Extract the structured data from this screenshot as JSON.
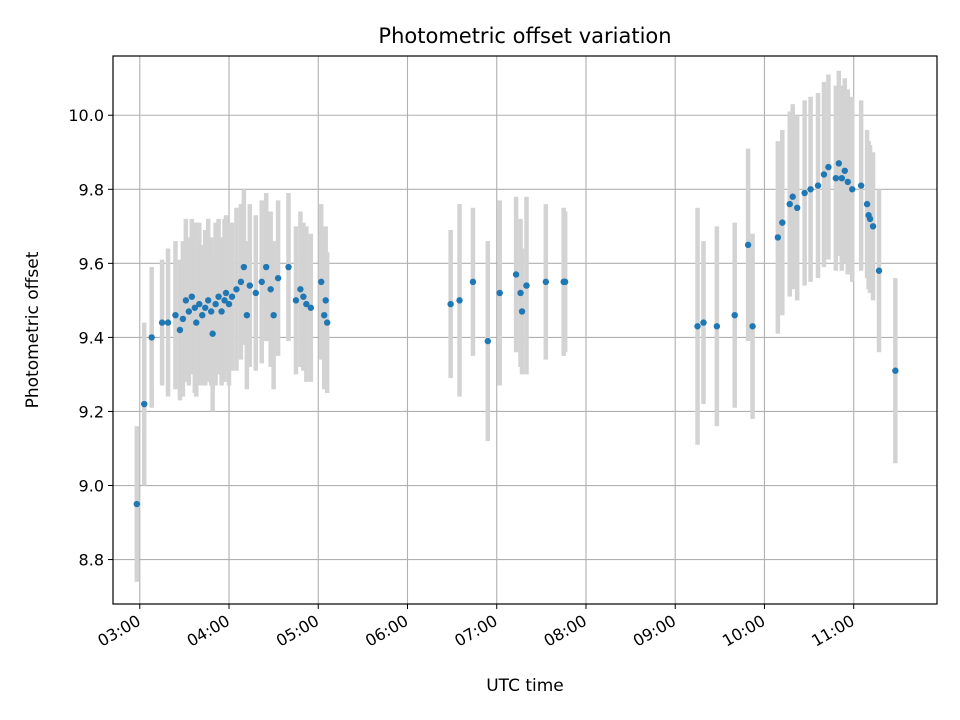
{
  "chart_data": {
    "type": "scatter",
    "title": "Photometric offset variation",
    "xlabel": "UTC time",
    "ylabel": "Photometric offset",
    "x_unit": "UTC time (HH:MM)",
    "xlim": [
      "02:42",
      "11:56"
    ],
    "ylim": [
      8.68,
      10.16
    ],
    "x_ticks": [
      "03:00",
      "04:00",
      "05:00",
      "06:00",
      "07:00",
      "08:00",
      "09:00",
      "10:00",
      "11:00"
    ],
    "y_ticks": [
      8.8,
      9.0,
      9.2,
      9.4,
      9.6,
      9.8,
      10.0
    ],
    "y_tick_labels": [
      "8.8",
      "9.0",
      "9.2",
      "9.4",
      "9.6",
      "9.8",
      "10.0"
    ],
    "grid": true,
    "marker_color": "#1f77b4",
    "errorbar_color": "#d3d3d3",
    "series": [
      {
        "points": [
          {
            "x": "02:58",
            "y": 8.95,
            "err": 0.21
          },
          {
            "x": "03:03",
            "y": 9.22,
            "err": 0.22
          },
          {
            "x": "03:08",
            "y": 9.4,
            "err": 0.19
          },
          {
            "x": "03:15",
            "y": 9.44,
            "err": 0.17
          },
          {
            "x": "03:19",
            "y": 9.44,
            "err": 0.2
          },
          {
            "x": "03:24",
            "y": 9.46,
            "err": 0.2
          },
          {
            "x": "03:27",
            "y": 9.42,
            "err": 0.19
          },
          {
            "x": "03:29",
            "y": 9.45,
            "err": 0.21
          },
          {
            "x": "03:31",
            "y": 9.5,
            "err": 0.22
          },
          {
            "x": "03:33",
            "y": 9.47,
            "err": 0.2
          },
          {
            "x": "03:35",
            "y": 9.51,
            "err": 0.21
          },
          {
            "x": "03:37",
            "y": 9.48,
            "err": 0.23
          },
          {
            "x": "03:38",
            "y": 9.44,
            "err": 0.2
          },
          {
            "x": "03:40",
            "y": 9.49,
            "err": 0.22
          },
          {
            "x": "03:42",
            "y": 9.46,
            "err": 0.19
          },
          {
            "x": "03:44",
            "y": 9.48,
            "err": 0.21
          },
          {
            "x": "03:46",
            "y": 9.5,
            "err": 0.22
          },
          {
            "x": "03:48",
            "y": 9.47,
            "err": 0.2
          },
          {
            "x": "03:49",
            "y": 9.41,
            "err": 0.21
          },
          {
            "x": "03:51",
            "y": 9.49,
            "err": 0.22
          },
          {
            "x": "03:53",
            "y": 9.51,
            "err": 0.21
          },
          {
            "x": "03:55",
            "y": 9.47,
            "err": 0.2
          },
          {
            "x": "03:57",
            "y": 9.5,
            "err": 0.22
          },
          {
            "x": "03:58",
            "y": 9.52,
            "err": 0.21
          },
          {
            "x": "04:00",
            "y": 9.49,
            "err": 0.22
          },
          {
            "x": "04:02",
            "y": 9.51,
            "err": 0.2
          },
          {
            "x": "04:05",
            "y": 9.53,
            "err": 0.22
          },
          {
            "x": "04:08",
            "y": 9.55,
            "err": 0.21
          },
          {
            "x": "04:10",
            "y": 9.59,
            "err": 0.21
          },
          {
            "x": "04:12",
            "y": 9.46,
            "err": 0.2
          },
          {
            "x": "04:14",
            "y": 9.54,
            "err": 0.22
          },
          {
            "x": "04:18",
            "y": 9.52,
            "err": 0.21
          },
          {
            "x": "04:22",
            "y": 9.55,
            "err": 0.22
          },
          {
            "x": "04:25",
            "y": 9.59,
            "err": 0.2
          },
          {
            "x": "04:28",
            "y": 9.53,
            "err": 0.21
          },
          {
            "x": "04:30",
            "y": 9.46,
            "err": 0.2
          },
          {
            "x": "04:33",
            "y": 9.56,
            "err": 0.21
          },
          {
            "x": "04:40",
            "y": 9.59,
            "err": 0.2
          },
          {
            "x": "04:45",
            "y": 9.5,
            "err": 0.2
          },
          {
            "x": "04:48",
            "y": 9.53,
            "err": 0.21
          },
          {
            "x": "04:50",
            "y": 9.51,
            "err": 0.2
          },
          {
            "x": "04:52",
            "y": 9.49,
            "err": 0.21
          },
          {
            "x": "04:55",
            "y": 9.48,
            "err": 0.2
          },
          {
            "x": "05:02",
            "y": 9.55,
            "err": 0.21
          },
          {
            "x": "05:04",
            "y": 9.46,
            "err": 0.2
          },
          {
            "x": "05:05",
            "y": 9.5,
            "err": 0.2
          },
          {
            "x": "05:06",
            "y": 9.44,
            "err": 0.19
          },
          {
            "x": "06:29",
            "y": 9.49,
            "err": 0.2
          },
          {
            "x": "06:35",
            "y": 9.5,
            "err": 0.26
          },
          {
            "x": "06:44",
            "y": 9.55,
            "err": 0.2
          },
          {
            "x": "06:54",
            "y": 9.39,
            "err": 0.27
          },
          {
            "x": "07:02",
            "y": 9.52,
            "err": 0.25
          },
          {
            "x": "07:13",
            "y": 9.57,
            "err": 0.21
          },
          {
            "x": "07:16",
            "y": 9.52,
            "err": 0.2
          },
          {
            "x": "07:17",
            "y": 9.47,
            "err": 0.17
          },
          {
            "x": "07:20",
            "y": 9.54,
            "err": 0.24
          },
          {
            "x": "07:33",
            "y": 9.55,
            "err": 0.21
          },
          {
            "x": "07:45",
            "y": 9.55,
            "err": 0.2
          },
          {
            "x": "07:46",
            "y": 9.55,
            "err": 0.19
          },
          {
            "x": "09:15",
            "y": 9.43,
            "err": 0.32
          },
          {
            "x": "09:19",
            "y": 9.44,
            "err": 0.22
          },
          {
            "x": "09:28",
            "y": 9.43,
            "err": 0.27
          },
          {
            "x": "09:40",
            "y": 9.46,
            "err": 0.25
          },
          {
            "x": "09:49",
            "y": 9.65,
            "err": 0.26
          },
          {
            "x": "09:52",
            "y": 9.43,
            "err": 0.25
          },
          {
            "x": "10:09",
            "y": 9.67,
            "err": 0.26
          },
          {
            "x": "10:12",
            "y": 9.71,
            "err": 0.25
          },
          {
            "x": "10:17",
            "y": 9.76,
            "err": 0.25
          },
          {
            "x": "10:19",
            "y": 9.78,
            "err": 0.25
          },
          {
            "x": "10:22",
            "y": 9.75,
            "err": 0.25
          },
          {
            "x": "10:27",
            "y": 9.79,
            "err": 0.25
          },
          {
            "x": "10:31",
            "y": 9.8,
            "err": 0.25
          },
          {
            "x": "10:36",
            "y": 9.81,
            "err": 0.25
          },
          {
            "x": "10:40",
            "y": 9.84,
            "err": 0.25
          },
          {
            "x": "10:43",
            "y": 9.86,
            "err": 0.25
          },
          {
            "x": "10:48",
            "y": 9.83,
            "err": 0.25
          },
          {
            "x": "10:50",
            "y": 9.87,
            "err": 0.25
          },
          {
            "x": "10:52",
            "y": 9.83,
            "err": 0.25
          },
          {
            "x": "10:54",
            "y": 9.85,
            "err": 0.25
          },
          {
            "x": "10:56",
            "y": 9.82,
            "err": 0.25
          },
          {
            "x": "10:59",
            "y": 9.8,
            "err": 0.25
          },
          {
            "x": "11:05",
            "y": 9.81,
            "err": 0.23
          },
          {
            "x": "11:09",
            "y": 9.76,
            "err": 0.2
          },
          {
            "x": "11:10",
            "y": 9.73,
            "err": 0.2
          },
          {
            "x": "11:11",
            "y": 9.72,
            "err": 0.2
          },
          {
            "x": "11:13",
            "y": 9.7,
            "err": 0.2
          },
          {
            "x": "11:17",
            "y": 9.58,
            "err": 0.22
          },
          {
            "x": "11:28",
            "y": 9.31,
            "err": 0.25
          }
        ]
      }
    ]
  }
}
